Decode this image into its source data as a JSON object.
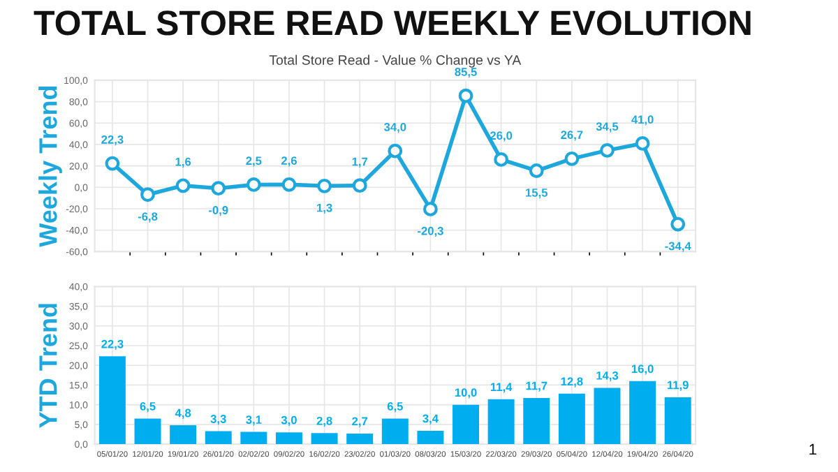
{
  "chart_data": [
    {
      "type": "line",
      "title": "TOTAL STORE READ WEEKLY EVOLUTION",
      "subtitle": "Total Store Read - Value % Change vs YA",
      "ylabel": "Weekly Trend",
      "categories": [
        null,
        null,
        null,
        null,
        null,
        null,
        null,
        null,
        null,
        null,
        null,
        null,
        null,
        null,
        null,
        null,
        null
      ],
      "series": [
        {
          "color": "#1ea7dd",
          "values": [
            22.3,
            -6.8,
            1.6,
            -0.9,
            2.5,
            2.6,
            1.3,
            1.7,
            34.0,
            -20.3,
            85.5,
            26.0,
            15.5,
            26.7,
            34.5,
            41.0,
            -34.4
          ],
          "value_labels": [
            "22,3",
            "-6,8",
            "1,6",
            "-0,9",
            "2,5",
            "2,6",
            "1,3",
            "1,7",
            "34,0",
            "-20,3",
            "85,5",
            "26,0",
            "15,5",
            "26,7",
            "34,5",
            "41,0",
            "-34,4"
          ]
        }
      ],
      "ylim": [
        -60,
        100
      ],
      "yticks": [
        {
          "value": -60,
          "label": "-60,0"
        },
        {
          "value": -40,
          "label": "-40,0"
        },
        {
          "value": -20,
          "label": "-20,0"
        },
        {
          "value": 0,
          "label": "0,0"
        },
        {
          "value": 20,
          "label": "20,0"
        },
        {
          "value": 40,
          "label": "40,0"
        },
        {
          "value": 60,
          "label": "60,0"
        },
        {
          "value": 80,
          "label": "80,0"
        },
        {
          "value": 100,
          "label": "100,0"
        }
      ],
      "tick_labels": "y",
      "grid": true,
      "marker": "circle",
      "line_style": "solid"
    },
    {
      "type": "bar",
      "ylabel": "YTD Trend",
      "categories": [
        "05/01/20",
        "12/01/20",
        "19/01/20",
        "26/01/20",
        "02/02/20",
        "09/02/20",
        "16/02/20",
        "23/02/20",
        "01/03/20",
        "08/03/20",
        "15/03/20",
        "22/03/20",
        "29/03/20",
        "05/04/20",
        "12/04/20",
        "19/04/20",
        "26/04/20"
      ],
      "series": [
        {
          "color": "#00aeef",
          "values": [
            22.3,
            6.5,
            4.8,
            3.3,
            3.1,
            3.0,
            2.8,
            2.7,
            6.5,
            3.4,
            10.0,
            11.4,
            11.7,
            12.8,
            14.3,
            16.0,
            11.9
          ],
          "value_labels": [
            "22,3",
            "6,5",
            "4,8",
            "3,3",
            "3,1",
            "3,0",
            "2,8",
            "2,7",
            "6,5",
            "3,4",
            "10,0",
            "11,4",
            "11,7",
            "12,8",
            "14,3",
            "16,0",
            "11,9"
          ]
        }
      ],
      "ylim": [
        0,
        40
      ],
      "yticks": [
        {
          "value": 0,
          "label": "0,0"
        },
        {
          "value": 5,
          "label": "5,0"
        },
        {
          "value": 10,
          "label": "10,0"
        },
        {
          "value": 15,
          "label": "15,0"
        },
        {
          "value": 20,
          "label": "20,0"
        },
        {
          "value": 25,
          "label": "25,0"
        },
        {
          "value": 30,
          "label": "30,0"
        },
        {
          "value": 35,
          "label": "35,0"
        },
        {
          "value": 40,
          "label": "40,0"
        }
      ],
      "grid": true,
      "annotations": [
        "1"
      ]
    }
  ]
}
